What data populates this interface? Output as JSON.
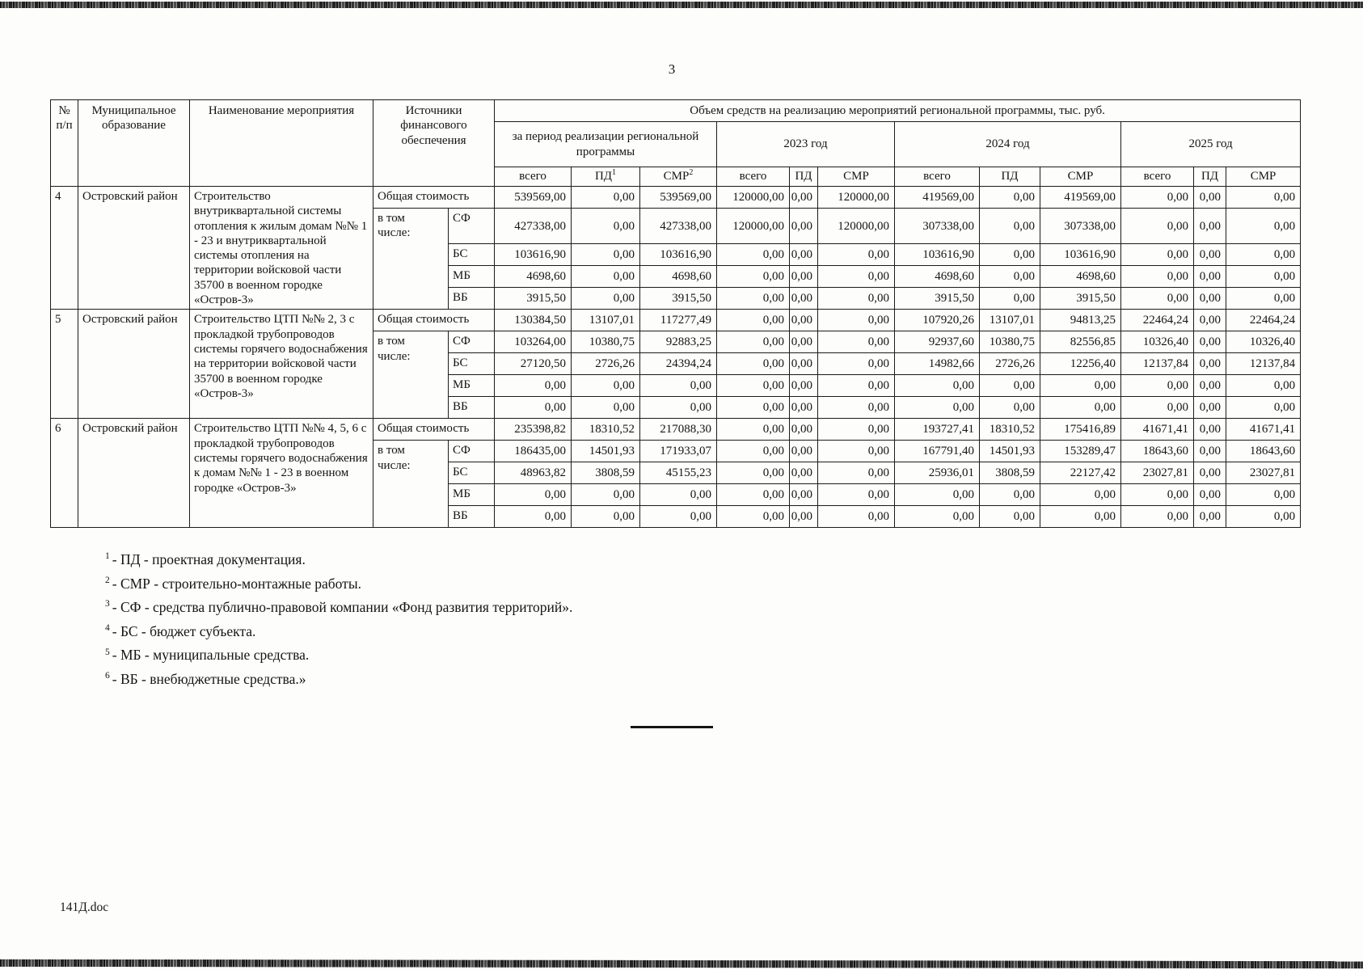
{
  "page": {
    "number": "3",
    "footer_filename": "141Д.doc"
  },
  "table": {
    "title_row": {
      "num": "№\nп/п",
      "municipality": "Муниципальное образование",
      "activity": "Наименование мероприятия",
      "funding_source": "Источники финансового обеспечения",
      "volume": "Объем средств на реализацию мероприятий региональной программы, тыс. руб."
    },
    "period_headers": [
      "за период реализации региональной программы",
      "2023 год",
      "2024 год",
      "2025 год"
    ],
    "sub_headers": [
      {
        "label": "всего",
        "sup": ""
      },
      {
        "label": "ПД",
        "sup": "1"
      },
      {
        "label": "СМР",
        "sup": "2"
      },
      {
        "label": "всего",
        "sup": ""
      },
      {
        "label": "ПД",
        "sup": ""
      },
      {
        "label": "СМР",
        "sup": ""
      },
      {
        "label": "всего",
        "sup": ""
      },
      {
        "label": "ПД",
        "sup": ""
      },
      {
        "label": "СМР",
        "sup": ""
      },
      {
        "label": "всего",
        "sup": ""
      },
      {
        "label": "ПД",
        "sup": ""
      },
      {
        "label": "СМР",
        "sup": ""
      }
    ],
    "groups": [
      {
        "num": "4",
        "municipality": "Островский район",
        "activity": "Строительство внутриквартальной системы отопления к жилым домам №№ 1 - 23 и внутриквартальной системы отопления на территории войсковой части 35700 в военном городке «Остров-3»",
        "total_label": "Общая стоимость",
        "including_label": "в том\nчисле:",
        "rows": [
          {
            "source": "",
            "values": [
              "539569,00",
              "0,00",
              "539569,00",
              "120000,00",
              "0,00",
              "120000,00",
              "419569,00",
              "0,00",
              "419569,00",
              "0,00",
              "0,00",
              "0,00"
            ]
          },
          {
            "source": "СФ",
            "values": [
              "427338,00",
              "0,00",
              "427338,00",
              "120000,00",
              "0,00",
              "120000,00",
              "307338,00",
              "0,00",
              "307338,00",
              "0,00",
              "0,00",
              "0,00"
            ]
          },
          {
            "source": "БС",
            "values": [
              "103616,90",
              "0,00",
              "103616,90",
              "0,00",
              "0,00",
              "0,00",
              "103616,90",
              "0,00",
              "103616,90",
              "0,00",
              "0,00",
              "0,00"
            ]
          },
          {
            "source": "МБ",
            "values": [
              "4698,60",
              "0,00",
              "4698,60",
              "0,00",
              "0,00",
              "0,00",
              "4698,60",
              "0,00",
              "4698,60",
              "0,00",
              "0,00",
              "0,00"
            ]
          },
          {
            "source": "ВБ",
            "values": [
              "3915,50",
              "0,00",
              "3915,50",
              "0,00",
              "0,00",
              "0,00",
              "3915,50",
              "0,00",
              "3915,50",
              "0,00",
              "0,00",
              "0,00"
            ]
          }
        ]
      },
      {
        "num": "5",
        "municipality": "Островский район",
        "activity": "Строительство ЦТП №№ 2, 3 с прокладкой трубопроводов системы горячего водоснабжения на территории войсковой части 35700 в военном городке «Остров-3»",
        "total_label": "Общая стоимость",
        "including_label": "в том\nчисле:",
        "rows": [
          {
            "source": "",
            "values": [
              "130384,50",
              "13107,01",
              "117277,49",
              "0,00",
              "0,00",
              "0,00",
              "107920,26",
              "13107,01",
              "94813,25",
              "22464,24",
              "0,00",
              "22464,24"
            ]
          },
          {
            "source": "СФ",
            "values": [
              "103264,00",
              "10380,75",
              "92883,25",
              "0,00",
              "0,00",
              "0,00",
              "92937,60",
              "10380,75",
              "82556,85",
              "10326,40",
              "0,00",
              "10326,40"
            ]
          },
          {
            "source": "БС",
            "values": [
              "27120,50",
              "2726,26",
              "24394,24",
              "0,00",
              "0,00",
              "0,00",
              "14982,66",
              "2726,26",
              "12256,40",
              "12137,84",
              "0,00",
              "12137,84"
            ]
          },
          {
            "source": "МБ",
            "values": [
              "0,00",
              "0,00",
              "0,00",
              "0,00",
              "0,00",
              "0,00",
              "0,00",
              "0,00",
              "0,00",
              "0,00",
              "0,00",
              "0,00"
            ]
          },
          {
            "source": "ВБ",
            "values": [
              "0,00",
              "0,00",
              "0,00",
              "0,00",
              "0,00",
              "0,00",
              "0,00",
              "0,00",
              "0,00",
              "0,00",
              "0,00",
              "0,00"
            ]
          }
        ]
      },
      {
        "num": "6",
        "municipality": "Островский район",
        "activity": "Строительство ЦТП №№ 4, 5, 6 с прокладкой трубопроводов системы горячего водоснабжения к домам №№ 1 - 23 в военном городке «Остров-3»",
        "total_label": "Общая стоимость",
        "including_label": "в том\nчисле:",
        "rows": [
          {
            "source": "",
            "values": [
              "235398,82",
              "18310,52",
              "217088,30",
              "0,00",
              "0,00",
              "0,00",
              "193727,41",
              "18310,52",
              "175416,89",
              "41671,41",
              "0,00",
              "41671,41"
            ]
          },
          {
            "source": "СФ",
            "values": [
              "186435,00",
              "14501,93",
              "171933,07",
              "0,00",
              "0,00",
              "0,00",
              "167791,40",
              "14501,93",
              "153289,47",
              "18643,60",
              "0,00",
              "18643,60"
            ]
          },
          {
            "source": "БС",
            "values": [
              "48963,82",
              "3808,59",
              "45155,23",
              "0,00",
              "0,00",
              "0,00",
              "25936,01",
              "3808,59",
              "22127,42",
              "23027,81",
              "0,00",
              "23027,81"
            ]
          },
          {
            "source": "МБ",
            "values": [
              "0,00",
              "0,00",
              "0,00",
              "0,00",
              "0,00",
              "0,00",
              "0,00",
              "0,00",
              "0,00",
              "0,00",
              "0,00",
              "0,00"
            ]
          },
          {
            "source": "ВБ",
            "values": [
              "0,00",
              "0,00",
              "0,00",
              "0,00",
              "0,00",
              "0,00",
              "0,00",
              "0,00",
              "0,00",
              "0,00",
              "0,00",
              "0,00"
            ]
          }
        ]
      }
    ]
  },
  "footnotes": [
    {
      "sup": "1",
      "text": "- ПД - проектная документация."
    },
    {
      "sup": "2",
      "text": "- СМР - строительно-монтажные работы."
    },
    {
      "sup": "3",
      "text": "- СФ - средства публично-правовой компании «Фонд развития территорий»."
    },
    {
      "sup": "4",
      "text": "- БС - бюджет субъекта."
    },
    {
      "sup": "5",
      "text": "- МБ - муниципальные средства."
    },
    {
      "sup": "6",
      "text": "- ВБ - внебюджетные средства.»"
    }
  ]
}
